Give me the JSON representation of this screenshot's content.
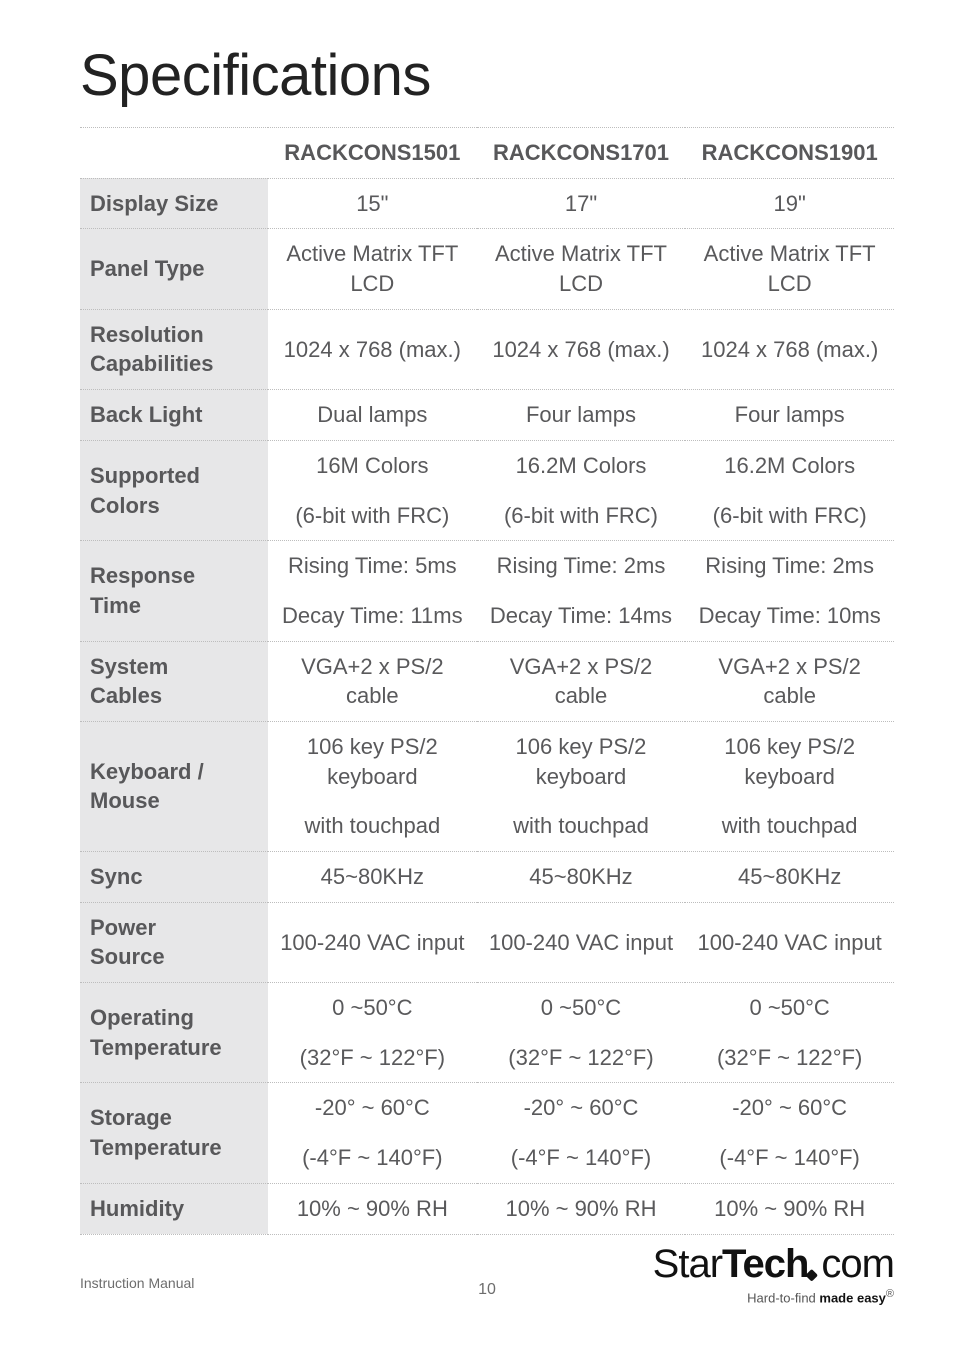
{
  "title": "Specifications",
  "columns": [
    "RACKCONS1501",
    "RACKCONS1701",
    "RACKCONS1901"
  ],
  "rows": [
    {
      "label": "Display Size",
      "vals": [
        "15\"",
        "17\"",
        "19\""
      ]
    },
    {
      "label": "Panel Type",
      "vals": [
        "Active Matrix TFT LCD",
        "Active Matrix TFT LCD",
        "Active Matrix TFT LCD"
      ]
    },
    {
      "label": "Resolution Capabilities",
      "vals": [
        "1024 x 768 (max.)",
        "1024 x 768 (max.)",
        "1024 x 768 (max.)"
      ],
      "label_two_line": true
    },
    {
      "label": "Back Light",
      "vals": [
        "Dual lamps",
        "Four lamps",
        "Four lamps"
      ]
    },
    {
      "label": "Supported Colors",
      "line1": [
        "16M Colors",
        "16.2M Colors",
        "16.2M Colors"
      ],
      "line2": [
        "(6-bit with FRC)",
        "(6-bit with FRC)",
        "(6-bit with FRC)"
      ],
      "label_two_line": true
    },
    {
      "label": "Response Time",
      "line1": [
        "Rising Time: 5ms",
        "Rising Time: 2ms",
        "Rising Time: 2ms"
      ],
      "line2": [
        "Decay Time: 11ms",
        "Decay Time: 14ms",
        "Decay Time: 10ms"
      ],
      "label_two_line": true
    },
    {
      "label": "System Cables",
      "vals": [
        "VGA+2 x PS/2 cable",
        "VGA+2 x PS/2 cable",
        "VGA+2 x PS/2 cable"
      ],
      "label_two_line": true
    },
    {
      "label": "Keyboard / Mouse",
      "line1": [
        "106 key PS/2 keyboard",
        "106 key PS/2 keyboard",
        "106 key PS/2 keyboard"
      ],
      "line2": [
        "with touchpad",
        "with touchpad",
        "with touchpad"
      ],
      "label_two_line": true
    },
    {
      "label": "Sync",
      "vals": [
        "45~80KHz",
        "45~80KHz",
        "45~80KHz"
      ]
    },
    {
      "label": "Power Source",
      "vals": [
        "100-240 VAC input",
        "100-240 VAC input",
        "100-240 VAC input"
      ],
      "label_two_line": true
    },
    {
      "label": "Operating Temperature",
      "line1": [
        "0 ~50°C",
        "0 ~50°C",
        "0 ~50°C"
      ],
      "line2": [
        "(32°F ~ 122°F)",
        "(32°F ~ 122°F)",
        "(32°F ~ 122°F)"
      ],
      "label_two_line": true
    },
    {
      "label": "Storage Temperature",
      "line1": [
        "-20° ~ 60°C",
        "-20° ~ 60°C",
        "-20° ~ 60°C"
      ],
      "line2": [
        "(-4°F ~ 140°F)",
        "(-4°F ~ 140°F)",
        "(-4°F ~ 140°F)"
      ],
      "label_two_line": true
    },
    {
      "label": "Humidity",
      "vals": [
        "10% ~ 90% RH",
        "10% ~ 90% RH",
        "10% ~ 90% RH"
      ]
    }
  ],
  "footer": {
    "instruction_manual": "Instruction Manual",
    "page_number": "10",
    "brand_left": "Star",
    "brand_mid": "Tech",
    "brand_right": "com",
    "tagline_pre": "Hard-to-find ",
    "tagline_bold": "made easy",
    "tagline_reg": "®"
  }
}
